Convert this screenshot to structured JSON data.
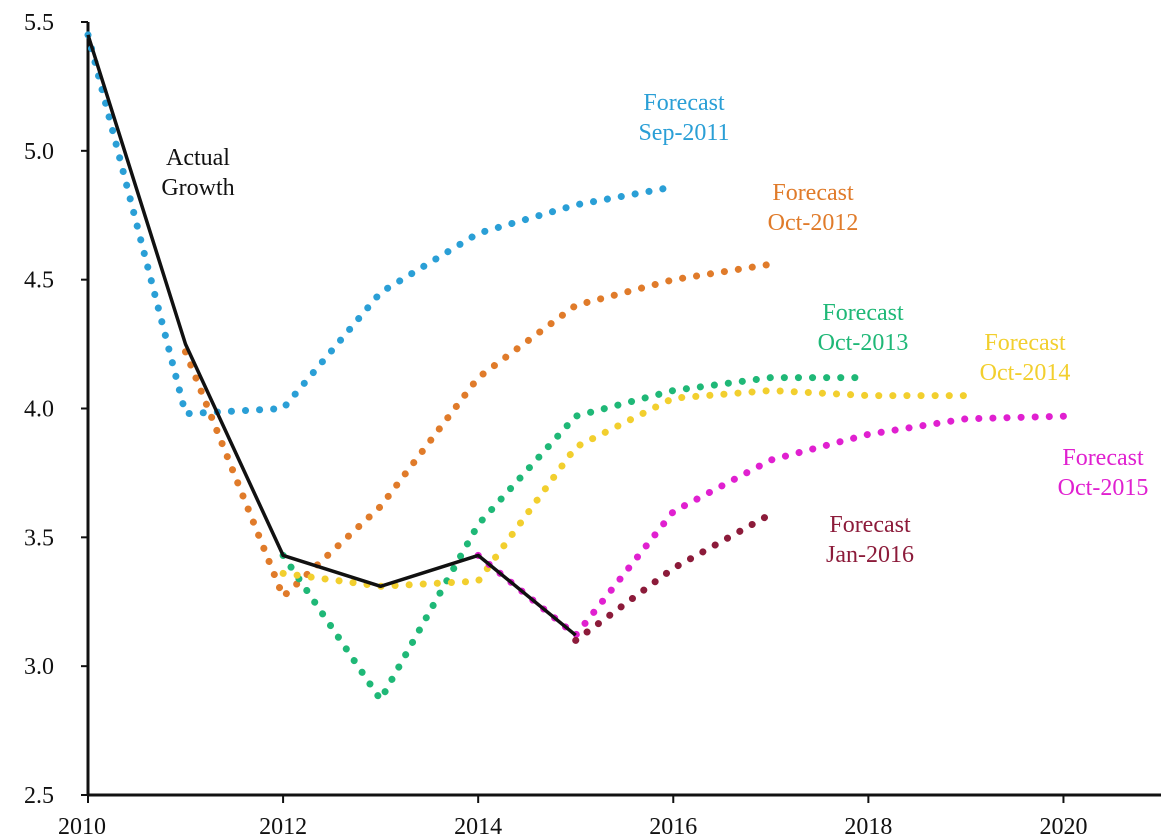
{
  "chart_data": {
    "type": "line",
    "xlim": [
      2010,
      2021
    ],
    "ylim": [
      2.5,
      5.5
    ],
    "x_ticks": [
      "2010",
      "2012",
      "2014",
      "2016",
      "2018",
      "2020"
    ],
    "y_ticks": [
      "2.5",
      "3.0",
      "3.5",
      "4.0",
      "4.5",
      "5.0",
      "5.5"
    ],
    "grid": false,
    "series": [
      {
        "label_lines": [
          "Actual",
          "Growth"
        ],
        "color": "#111111",
        "style": "solid",
        "points": [
          [
            2010,
            5.45
          ],
          [
            2011,
            4.25
          ],
          [
            2012,
            3.43
          ],
          [
            2013,
            3.31
          ],
          [
            2014,
            3.43
          ],
          [
            2015,
            3.12
          ]
        ]
      },
      {
        "label_lines": [
          "Forecast",
          "Sep-2011"
        ],
        "color": "#2a9fd6",
        "style": "dotted",
        "points": [
          [
            2010,
            5.45
          ],
          [
            2011,
            3.98
          ],
          [
            2012,
            4.0
          ],
          [
            2013,
            4.45
          ],
          [
            2014,
            4.68
          ],
          [
            2015,
            4.79
          ],
          [
            2016,
            4.86
          ]
        ]
      },
      {
        "label_lines": [
          "Forecast",
          "Oct-2012"
        ],
        "color": "#e07b2a",
        "style": "dotted",
        "points": [
          [
            2011,
            4.22
          ],
          [
            2012,
            3.27
          ],
          [
            2013,
            3.62
          ],
          [
            2014,
            4.12
          ],
          [
            2015,
            4.4
          ],
          [
            2016,
            4.5
          ],
          [
            2017,
            4.56
          ]
        ]
      },
      {
        "label_lines": [
          "Forecast",
          "Oct-2013"
        ],
        "color": "#1fb877",
        "style": "dotted",
        "points": [
          [
            2012,
            3.43
          ],
          [
            2013,
            2.87
          ],
          [
            2014,
            3.55
          ],
          [
            2015,
            3.97
          ],
          [
            2016,
            4.07
          ],
          [
            2017,
            4.12
          ],
          [
            2018,
            4.12
          ]
        ]
      },
      {
        "label_lines": [
          "Forecast",
          "Oct-2014"
        ],
        "color": "#f2cf2e",
        "style": "dotted",
        "points": [
          [
            2012,
            3.36
          ],
          [
            2013,
            3.31
          ],
          [
            2014,
            3.33
          ],
          [
            2015,
            3.85
          ],
          [
            2016,
            4.04
          ],
          [
            2017,
            4.07
          ],
          [
            2018,
            4.05
          ],
          [
            2019,
            4.05
          ]
        ]
      },
      {
        "label_lines": [
          "Forecast",
          "Oct-2015"
        ],
        "color": "#e020d0",
        "style": "dotted",
        "points": [
          [
            2014,
            3.43
          ],
          [
            2015,
            3.12
          ],
          [
            2016,
            3.6
          ],
          [
            2017,
            3.8
          ],
          [
            2018,
            3.9
          ],
          [
            2019,
            3.96
          ],
          [
            2020,
            3.97
          ]
        ]
      },
      {
        "label_lines": [
          "Forecast",
          "Jan-2016"
        ],
        "color": "#8c1b3a",
        "style": "dotted",
        "points": [
          [
            2015,
            3.1
          ],
          [
            2016,
            3.38
          ],
          [
            2017,
            3.59
          ]
        ]
      }
    ]
  }
}
